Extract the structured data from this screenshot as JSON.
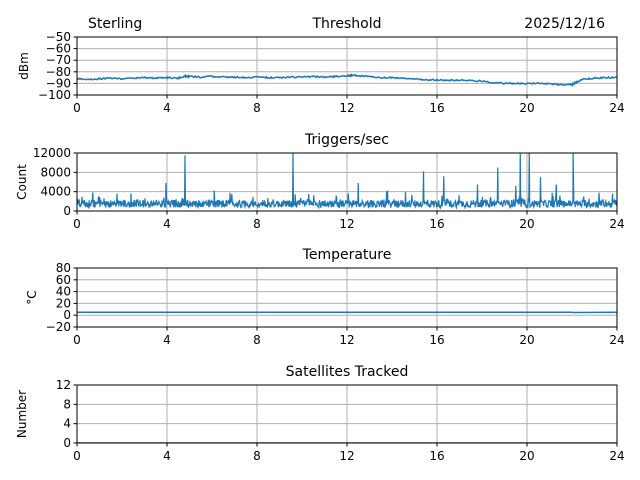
{
  "header": {
    "station": "Sterling",
    "date": "2025/12/16"
  },
  "colors": {
    "series": "#1f77b4",
    "grid": "#b0b0b0",
    "axes": "#000000",
    "background": "#ffffff"
  },
  "chart_data": [
    {
      "type": "line",
      "title": "Threshold",
      "xlabel": "",
      "ylabel": "dBm",
      "xlim": [
        0,
        24
      ],
      "ylim": [
        -100,
        -50
      ],
      "xticks": [
        "0",
        "4",
        "8",
        "12",
        "16",
        "20",
        "24"
      ],
      "yticks": [
        "−100",
        "−90",
        "−80",
        "−70",
        "−60",
        "−50"
      ],
      "grid": true,
      "series": [
        {
          "x": [
            0,
            0.5,
            1,
            1.5,
            2,
            2.5,
            3,
            3.5,
            4,
            4.5,
            4.75,
            5,
            5.5,
            6,
            6.5,
            7,
            7.5,
            8,
            8.5,
            9,
            9.5,
            10,
            10.5,
            11,
            11.5,
            12,
            12.3,
            12.6,
            13,
            13.5,
            14,
            14.5,
            15,
            15.5,
            16,
            16.5,
            17,
            17.5,
            18,
            18.5,
            19,
            19.5,
            20,
            20.5,
            21,
            21.5,
            22,
            22.2,
            22.5,
            23,
            23.5,
            24
          ],
          "y": [
            -86,
            -86.5,
            -86,
            -85.5,
            -86,
            -85.5,
            -85,
            -85.5,
            -85,
            -85.5,
            -84,
            -84,
            -84.5,
            -84,
            -84.5,
            -84.5,
            -85,
            -84.5,
            -85,
            -85,
            -84.5,
            -84.5,
            -84,
            -84.5,
            -84,
            -83.5,
            -83,
            -83.5,
            -84,
            -85,
            -85,
            -85.5,
            -86,
            -87,
            -87,
            -87.5,
            -87,
            -87.5,
            -88,
            -89.5,
            -90,
            -90,
            -90,
            -90,
            -90.5,
            -91,
            -91,
            -89,
            -86.5,
            -85.5,
            -85,
            -85
          ]
        }
      ]
    },
    {
      "type": "line",
      "title": "Triggers/sec",
      "xlabel": "",
      "ylabel": "Count",
      "xlim": [
        0,
        24
      ],
      "ylim": [
        0,
        12000
      ],
      "xticks": [
        "0",
        "4",
        "8",
        "12",
        "16",
        "20",
        "24"
      ],
      "yticks": [
        "0",
        "4000",
        "8000",
        "12000"
      ],
      "grid": true,
      "baseline": 1500,
      "spikes": [
        {
          "x": 3.95,
          "y": 5800
        },
        {
          "x": 4.8,
          "y": 11500
        },
        {
          "x": 6.1,
          "y": 4200
        },
        {
          "x": 6.8,
          "y": 3800
        },
        {
          "x": 9.6,
          "y": 12000
        },
        {
          "x": 10.3,
          "y": 3500
        },
        {
          "x": 12.5,
          "y": 5800
        },
        {
          "x": 13.8,
          "y": 4200
        },
        {
          "x": 14.6,
          "y": 4000
        },
        {
          "x": 15.4,
          "y": 8200
        },
        {
          "x": 16.3,
          "y": 7200
        },
        {
          "x": 17.8,
          "y": 5500
        },
        {
          "x": 18.7,
          "y": 9000
        },
        {
          "x": 19.5,
          "y": 5200
        },
        {
          "x": 19.7,
          "y": 12000
        },
        {
          "x": 20.1,
          "y": 12000
        },
        {
          "x": 20.6,
          "y": 7000
        },
        {
          "x": 21.3,
          "y": 5500
        },
        {
          "x": 22.05,
          "y": 12000
        },
        {
          "x": 23.2,
          "y": 3800
        },
        {
          "x": 23.8,
          "y": 3600
        }
      ]
    },
    {
      "type": "line",
      "title": "Temperature",
      "xlabel": "",
      "ylabel": "°C",
      "xlim": [
        0,
        24
      ],
      "ylim": [
        -20,
        80
      ],
      "xticks": [
        "0",
        "4",
        "8",
        "12",
        "16",
        "20",
        "24"
      ],
      "yticks": [
        "−20",
        "0",
        "20",
        "40",
        "60",
        "80"
      ],
      "grid": true,
      "series": [
        {
          "x": [
            0,
            22,
            22.1,
            24
          ],
          "y": [
            5,
            5,
            4.5,
            5
          ]
        }
      ]
    },
    {
      "type": "line",
      "title": "Satellites Tracked",
      "xlabel": "",
      "ylabel": "Number",
      "xlim": [
        0,
        24
      ],
      "ylim": [
        0,
        12
      ],
      "xticks": [
        "0",
        "4",
        "8",
        "12",
        "16",
        "20",
        "24"
      ],
      "yticks": [
        "0",
        "4",
        "8",
        "12"
      ],
      "grid": true,
      "series": [
        {
          "x": [
            0,
            24
          ],
          "y": [
            0,
            0
          ]
        }
      ]
    }
  ]
}
